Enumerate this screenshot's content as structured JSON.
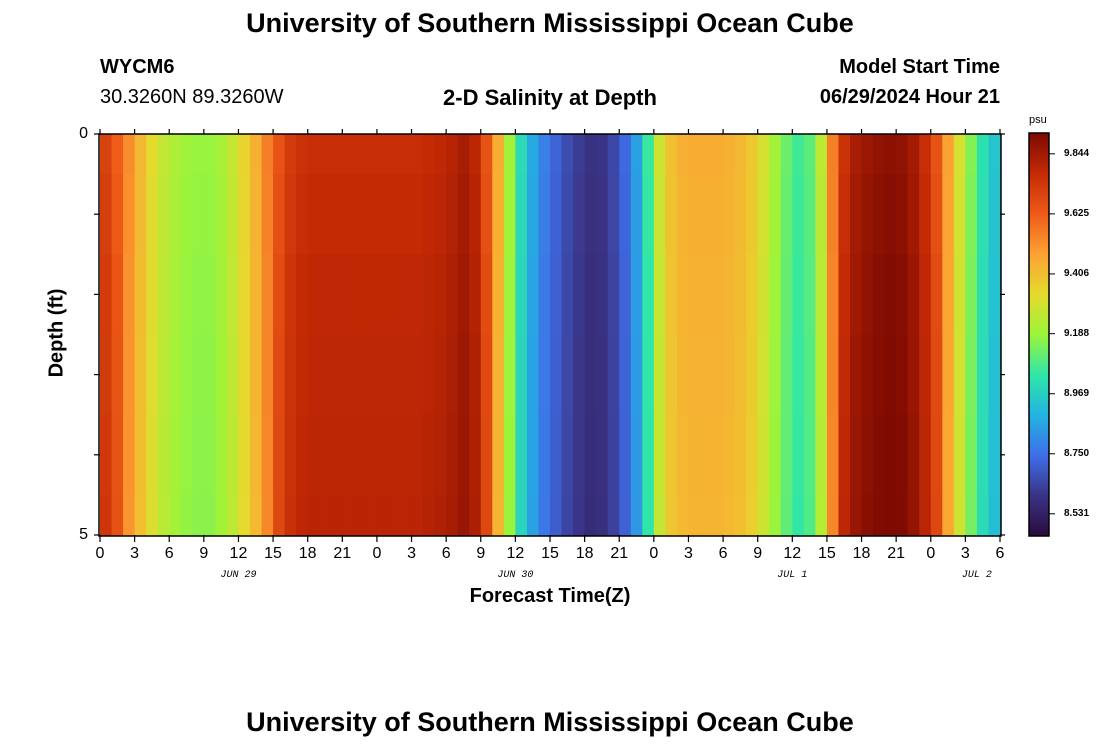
{
  "title": "University of Southern Mississippi Ocean Cube",
  "bottom_title": "University of Southern Mississippi Ocean Cube",
  "station": {
    "id": "WYCM6",
    "coords": "30.3260N  89.3260W"
  },
  "model": {
    "label": "Model Start Time",
    "time": "06/29/2024 Hour 21"
  },
  "chart_data": {
    "type": "heatmap",
    "title": "2-D Salinity at Depth",
    "xlabel": "Forecast Time(Z)",
    "ylabel": "Depth (ft)",
    "x_ticks": [
      "0",
      "3",
      "6",
      "9",
      "12",
      "15",
      "18",
      "21",
      "0",
      "3",
      "6",
      "9",
      "12",
      "15",
      "18",
      "21",
      "0",
      "3",
      "6",
      "9",
      "12",
      "15",
      "18",
      "21",
      "0",
      "3",
      "6"
    ],
    "x_range_hours": [
      0,
      78
    ],
    "day_labels": [
      {
        "label": "JUN 29",
        "hour": 12
      },
      {
        "label": "JUN 30",
        "hour": 36
      },
      {
        "label": "JUL 1",
        "hour": 60
      },
      {
        "label": "JUL 2",
        "hour": 76
      }
    ],
    "y_ticks": [
      "0",
      "5"
    ],
    "ylim": [
      0,
      5
    ],
    "depth_levels": [
      0,
      0.5,
      1.5,
      2.5,
      3.5,
      4.5,
      5
    ],
    "colorbar": {
      "unit": "psu",
      "tick_labels": [
        "9.844",
        "9.625",
        "9.406",
        "9.188",
        "8.969",
        "8.750",
        "8.531"
      ],
      "range": [
        8.45,
        9.92
      ],
      "stops": [
        "#2a0b3e",
        "#3a3384",
        "#3f6ee8",
        "#22b4e0",
        "#2fe7a8",
        "#9cf43a",
        "#e6da2e",
        "#fca233",
        "#ee5a18",
        "#c32a05",
        "#7e0a02"
      ]
    },
    "series": [
      {
        "hours": [
          0,
          1,
          2,
          3,
          4,
          5,
          6,
          7,
          8,
          9,
          10,
          11,
          12,
          13,
          14,
          15,
          16,
          17,
          18,
          19,
          20,
          21,
          22,
          23,
          24,
          25,
          26,
          27,
          28,
          29,
          30,
          31,
          32,
          33,
          34,
          35,
          36,
          37,
          38,
          39,
          40,
          41,
          42,
          43,
          44,
          45,
          46,
          47,
          48,
          49,
          50,
          51,
          52,
          53,
          54,
          55,
          56,
          57,
          58,
          59,
          60,
          61,
          62,
          63,
          64,
          65,
          66,
          67,
          68,
          69,
          70,
          71,
          72,
          73,
          74,
          75,
          76,
          77,
          78
        ],
        "values": [
          9.7,
          9.62,
          9.52,
          9.42,
          9.33,
          9.26,
          9.22,
          9.19,
          9.18,
          9.18,
          9.21,
          9.27,
          9.35,
          9.44,
          9.55,
          9.65,
          9.72,
          9.75,
          9.76,
          9.76,
          9.76,
          9.76,
          9.76,
          9.76,
          9.76,
          9.76,
          9.76,
          9.76,
          9.77,
          9.78,
          9.8,
          9.83,
          9.79,
          9.65,
          9.45,
          9.2,
          9.0,
          8.87,
          8.78,
          8.72,
          8.66,
          8.62,
          8.59,
          8.6,
          8.65,
          8.73,
          8.85,
          9.05,
          9.28,
          9.4,
          9.44,
          9.45,
          9.45,
          9.45,
          9.44,
          9.42,
          9.38,
          9.3,
          9.2,
          9.12,
          9.06,
          9.1,
          9.25,
          9.55,
          9.75,
          9.83,
          9.86,
          9.88,
          9.89,
          9.88,
          9.84,
          9.76,
          9.65,
          9.48,
          9.3,
          9.15,
          9.02,
          8.94,
          8.88
        ]
      }
    ]
  }
}
